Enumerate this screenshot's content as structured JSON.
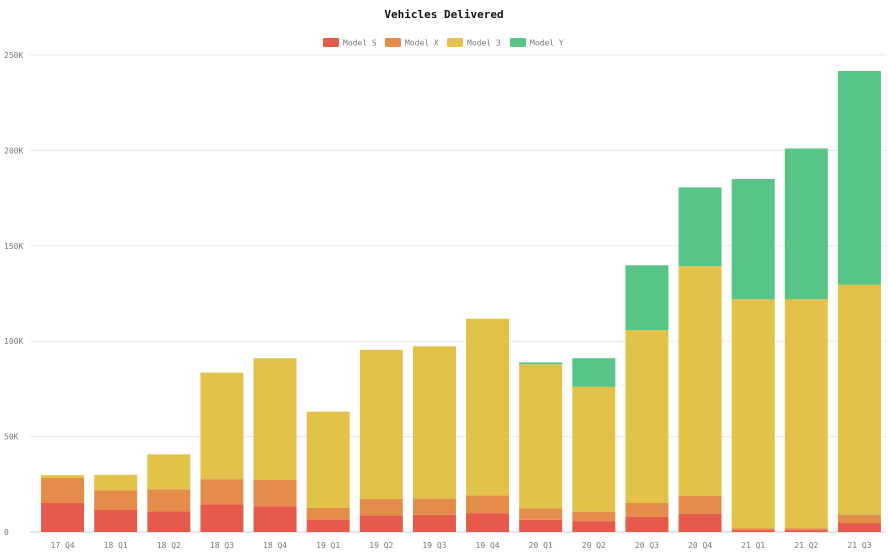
{
  "chart_data": {
    "type": "bar",
    "stacked": true,
    "title": "Vehicles Delivered",
    "xlabel": "",
    "ylabel": "",
    "ylim": [
      0,
      250000
    ],
    "yticks": [
      "0",
      "50K",
      "100K",
      "150K",
      "200K",
      "250K"
    ],
    "grid": true,
    "legend_position": "top-center",
    "categories": [
      "17 Q4",
      "18 Q1",
      "18 Q2",
      "18 Q3",
      "18 Q4",
      "19 Q1",
      "19 Q2",
      "19 Q3",
      "19 Q4",
      "20 Q1",
      "20 Q2",
      "20 Q3",
      "20 Q4",
      "21 Q1",
      "21 Q2",
      "21 Q3"
    ],
    "series": [
      {
        "name": "Model S",
        "color": "#e55a4a",
        "values": [
          15200,
          11700,
          10900,
          14500,
          13500,
          6500,
          8800,
          9000,
          9900,
          6400,
          5700,
          7900,
          9600,
          1000,
          1000,
          4700
        ]
      },
      {
        "name": "Model X",
        "color": "#e48c4a",
        "values": [
          13100,
          10100,
          11400,
          13200,
          13900,
          6100,
          8600,
          8500,
          9300,
          5900,
          4900,
          7300,
          9400,
          1000,
          1000,
          4400
        ]
      },
      {
        "name": "Model 3",
        "color": "#e3c24a",
        "values": [
          1500,
          8200,
          18400,
          55800,
          63700,
          50500,
          78100,
          79800,
          92600,
          75600,
          65500,
          90600,
          120300,
          120000,
          120000,
          120500
        ]
      },
      {
        "name": "Model Y",
        "color": "#57c585",
        "values": [
          0,
          0,
          0,
          0,
          0,
          0,
          0,
          0,
          0,
          1000,
          15000,
          34000,
          41300,
          63000,
          79000,
          112000
        ]
      }
    ]
  }
}
